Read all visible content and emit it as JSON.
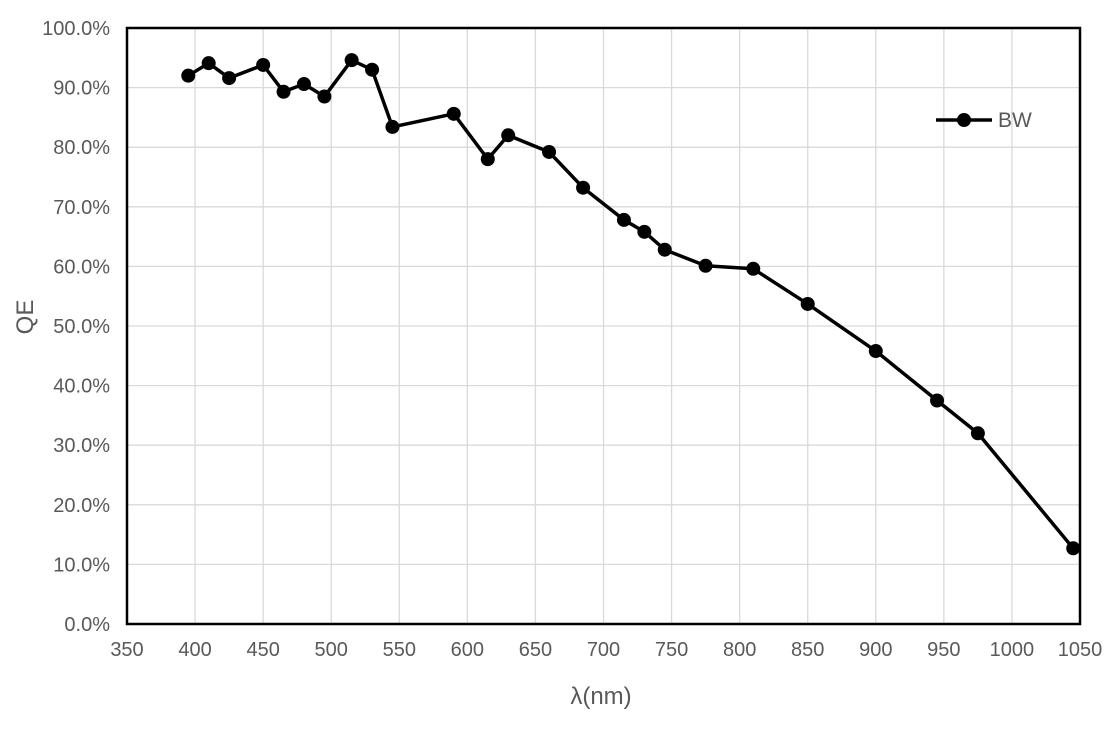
{
  "chart_data": {
    "type": "line",
    "title": "",
    "xlabel": "λ(nm)",
    "ylabel": "QE",
    "series": [
      {
        "name": "BW",
        "x": [
          395,
          410,
          425,
          450,
          465,
          480,
          495,
          515,
          530,
          545,
          590,
          615,
          630,
          660,
          685,
          715,
          730,
          745,
          775,
          810,
          850,
          900,
          945,
          975,
          1045
        ],
        "y": [
          92.0,
          94.1,
          91.6,
          93.8,
          89.3,
          90.6,
          88.5,
          94.6,
          93.0,
          83.4,
          85.6,
          78.0,
          82.0,
          79.2,
          73.2,
          67.8,
          65.8,
          62.8,
          60.1,
          59.6,
          53.7,
          45.8,
          37.5,
          32.0,
          12.7
        ]
      }
    ],
    "xlim": [
      350,
      1050
    ],
    "ylim": [
      0,
      100
    ],
    "x_ticks": [
      350,
      400,
      450,
      500,
      550,
      600,
      650,
      700,
      750,
      800,
      850,
      900,
      950,
      1000,
      1050
    ],
    "y_ticks": [
      0,
      10,
      20,
      30,
      40,
      50,
      60,
      70,
      80,
      90,
      100
    ],
    "y_tick_labels": [
      "0.0%",
      "10.0%",
      "20.0%",
      "30.0%",
      "40.0%",
      "50.0%",
      "60.0%",
      "70.0%",
      "80.0%",
      "90.0%",
      "100.0%"
    ],
    "grid": true,
    "legend_position": "inside top-right",
    "legend": {
      "label": "BW"
    },
    "colors": {
      "line": "#000000",
      "marker": "#000000",
      "gridline": "#d9d9d9",
      "plot_border": "#000000",
      "tick_text": "#595959",
      "background": "#ffffff"
    }
  }
}
